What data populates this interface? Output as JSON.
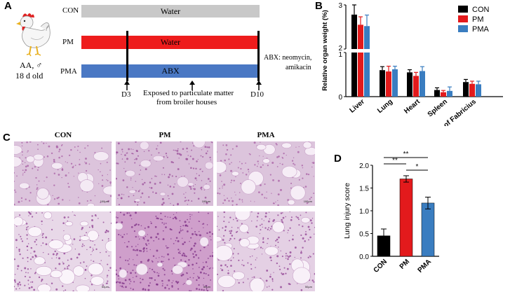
{
  "panels": {
    "a": "A",
    "b": "B",
    "c": "C",
    "d": "D"
  },
  "panel_a": {
    "chicken_info_line1": "AA, ♂",
    "chicken_info_line2": "18 d old",
    "groups": [
      {
        "label": "CON",
        "bar_text": "Water",
        "color": "#c8c8c8"
      },
      {
        "label": "PM",
        "bar_text": "Water",
        "color": "#ee1c1c"
      },
      {
        "label": "PMA",
        "bar_text": "ABX",
        "color": "#4a78c4"
      }
    ],
    "day_start": "D3",
    "day_end": "D10",
    "exposure_line1": "Exposed to particulate matter",
    "exposure_line2": "from broiler houses",
    "abx_line1": "ABX: neomycin,",
    "abx_line2": "amikacin"
  },
  "panel_c": {
    "titles": [
      "CON",
      "PM",
      "PMA"
    ],
    "scale_top": "100μm",
    "scale_bottom": "50μm"
  },
  "colors": {
    "con": "#000000",
    "pm": "#e31a1c",
    "pma": "#3a7dc0",
    "tissue": "#c98fc0"
  },
  "chart_data": [
    {
      "type": "bar",
      "panel": "B",
      "ylabel": "Relative organ weight (%)",
      "categories": [
        "Liver",
        "Lung",
        "Heart",
        "Spleen",
        "Bursa of Fabricius"
      ],
      "series": [
        {
          "name": "CON",
          "values": [
            2.78,
            0.6,
            0.55,
            0.15,
            0.33
          ],
          "errors": [
            0.22,
            0.08,
            0.06,
            0.05,
            0.06
          ]
        },
        {
          "name": "PM",
          "values": [
            2.55,
            0.57,
            0.47,
            0.1,
            0.29
          ],
          "errors": [
            0.18,
            0.12,
            0.08,
            0.04,
            0.06
          ]
        },
        {
          "name": "PMA",
          "values": [
            2.52,
            0.62,
            0.58,
            0.13,
            0.28
          ],
          "errors": [
            0.25,
            0.07,
            0.1,
            0.09,
            0.07
          ]
        }
      ],
      "axis_break": [
        1,
        2
      ],
      "upper_ticks": [
        "1",
        "2",
        "3"
      ],
      "lower_ticks": [
        "0",
        "1"
      ],
      "legend_position": "top-right"
    },
    {
      "type": "bar",
      "panel": "D",
      "ylabel": "Lung injury score",
      "categories": [
        "CON",
        "PM",
        "PMA"
      ],
      "values": [
        0.45,
        1.7,
        1.17
      ],
      "errors": [
        0.15,
        0.07,
        0.13
      ],
      "ylim": [
        0,
        2.0
      ],
      "yticks": [
        "0.0",
        "0.5",
        "1.0",
        "1.5",
        "2.0"
      ],
      "significance": [
        {
          "pair": [
            "CON",
            "PM"
          ],
          "label": "**"
        },
        {
          "pair": [
            "PM",
            "PMA"
          ],
          "label": "*"
        },
        {
          "pair": [
            "CON",
            "PMA"
          ],
          "label": "**"
        }
      ]
    }
  ]
}
